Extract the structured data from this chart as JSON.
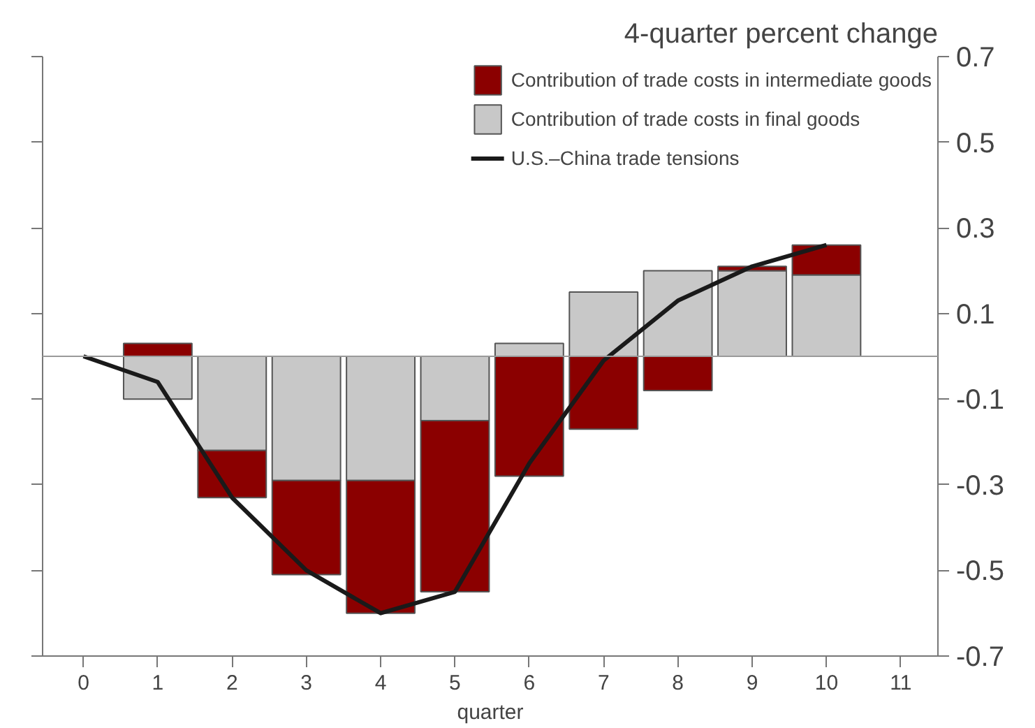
{
  "chart_data": {
    "type": "bar",
    "title": "4-quarter percent change",
    "xlabel": "quarter",
    "stacked": true,
    "x": [
      1,
      2,
      3,
      4,
      5,
      6,
      7,
      8,
      9,
      10
    ],
    "series": [
      {
        "name": "Contribution of trade costs in final goods",
        "color": "#c8c8c8",
        "values": [
          -0.1,
          -0.22,
          -0.29,
          -0.29,
          -0.15,
          0.03,
          0.15,
          0.2,
          0.2,
          0.19
        ]
      },
      {
        "name": "Contribution of trade costs in intermediate goods",
        "color": "#8b0000",
        "values": [
          0.03,
          -0.11,
          -0.22,
          -0.31,
          -0.4,
          -0.28,
          -0.17,
          -0.08,
          0.01,
          0.07
        ]
      },
      {
        "name": "U.S.–China trade tensions",
        "type": "line",
        "color": "#1a1a1a",
        "x": [
          0,
          1,
          2,
          3,
          4,
          5,
          6,
          7,
          8,
          9,
          10
        ],
        "values": [
          0,
          -0.06,
          -0.33,
          -0.5,
          -0.6,
          -0.55,
          -0.25,
          -0.01,
          0.13,
          0.21,
          0.26
        ]
      }
    ],
    "xlim": [
      -0.55,
      11.5
    ],
    "xticks": [
      0,
      1,
      2,
      3,
      4,
      5,
      6,
      7,
      8,
      9,
      10,
      11
    ],
    "ylim": [
      -0.7,
      0.7
    ],
    "yticks": [
      0.7,
      0.5,
      0.3,
      0.1,
      -0.1,
      -0.3,
      -0.5,
      -0.7
    ],
    "ref_lines": [
      {
        "axis": "y",
        "value": 0,
        "color": "#9a9a9a"
      }
    ],
    "legend": "top right",
    "grid": false
  }
}
